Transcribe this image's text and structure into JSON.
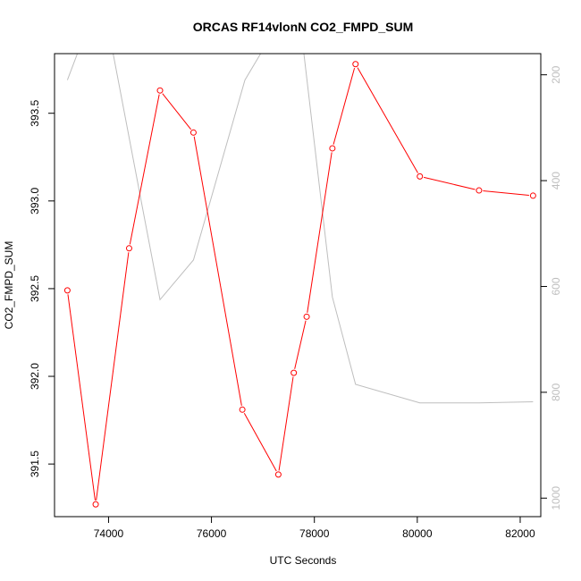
{
  "chart_data": {
    "type": "line",
    "title": "ORCAS RF14vlonN CO2_FMPD_SUM",
    "xlabel": "UTC Seconds",
    "ylabel": "CO2_FMPD_SUM",
    "xlim": [
      72950,
      82400
    ],
    "ylim": [
      391.2,
      393.84
    ],
    "y2lim": [
      1035,
      160
    ],
    "x_ticks": [
      74000,
      76000,
      78000,
      80000,
      82000
    ],
    "y_ticks": [
      391.5,
      392.0,
      392.5,
      393.0,
      393.5
    ],
    "y_tick_labels": [
      "391.5",
      "392.0",
      "392.5",
      "393.0",
      "393.5"
    ],
    "y2_ticks": [
      200,
      400,
      600,
      800,
      1000
    ],
    "grid": false,
    "series": [
      {
        "axis": "left",
        "color": "#ff0000",
        "marker": "open-circle",
        "x": [
          73200,
          73750,
          74400,
          75000,
          75650,
          76600,
          77300,
          77600,
          77850,
          78350,
          78800,
          80050,
          81200,
          82250
        ],
        "values": [
          392.49,
          391.27,
          392.73,
          393.63,
          393.39,
          391.81,
          391.44,
          392.02,
          392.34,
          393.3,
          393.78,
          393.14,
          393.06,
          393.03
        ]
      },
      {
        "axis": "right",
        "color": "#bebebe",
        "x": [
          73200,
          73550,
          74050,
          75000,
          75650,
          76650,
          77200,
          77700,
          78350,
          78800,
          80050,
          81200,
          82250
        ],
        "values": [
          210,
          120,
          140,
          625,
          550,
          210,
          120,
          80,
          620,
          785,
          820,
          820,
          818
        ]
      }
    ]
  }
}
